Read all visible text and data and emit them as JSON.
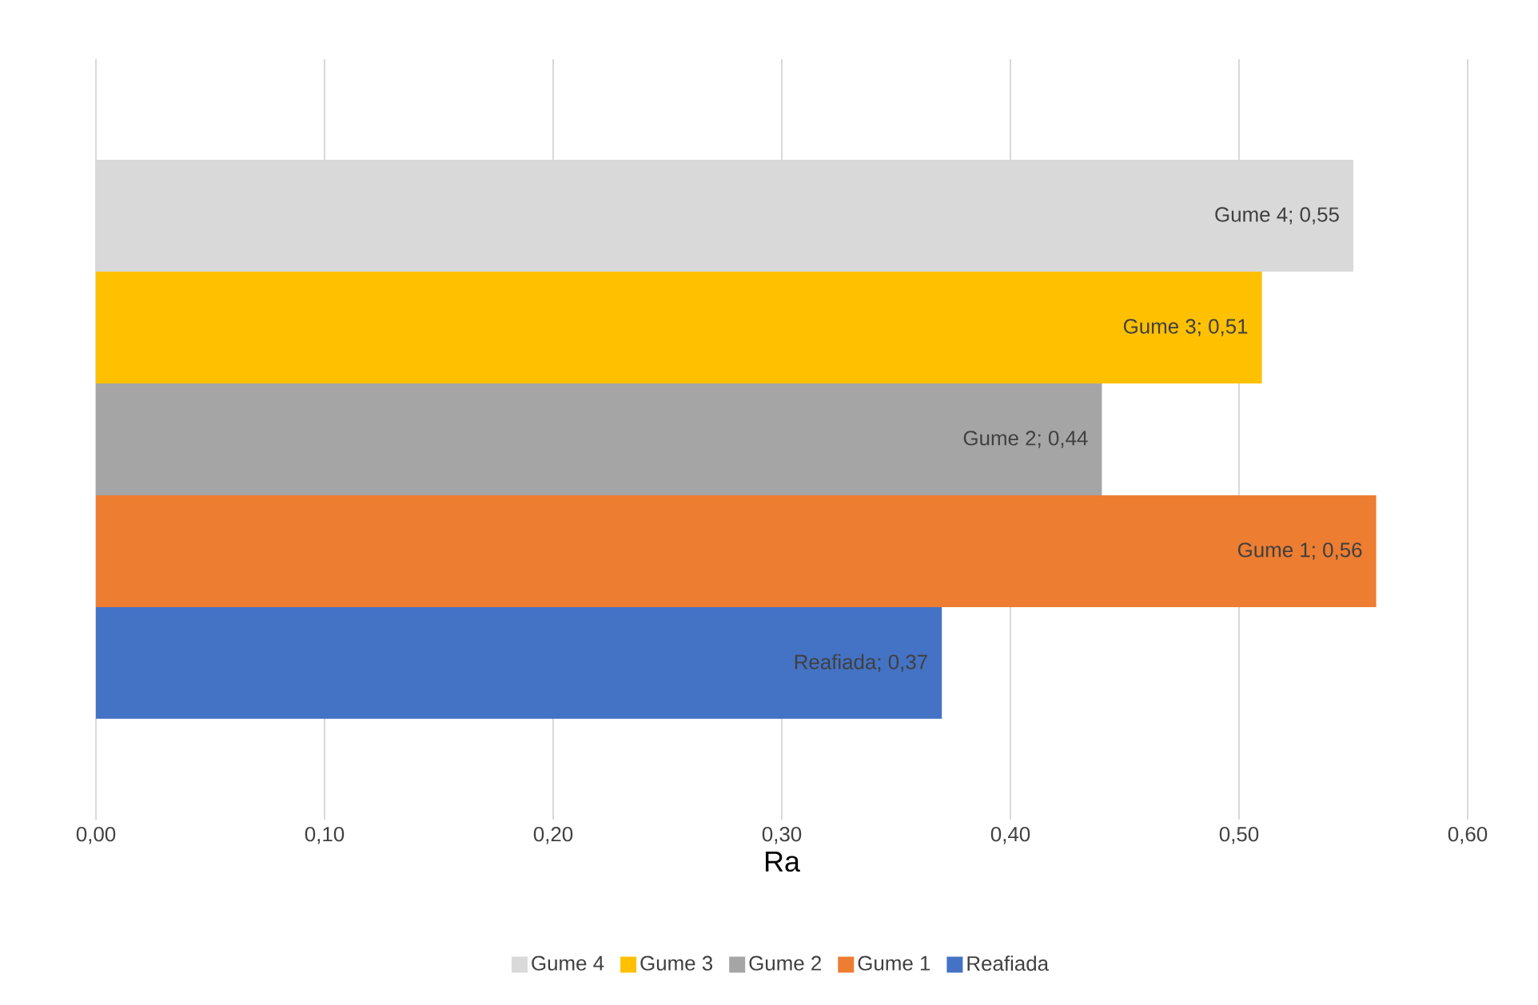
{
  "chart_data": {
    "type": "bar",
    "orientation": "horizontal",
    "xlabel": "Ra",
    "categories": [
      null
    ],
    "series": [
      {
        "name": "Gume 4",
        "color": "#d9d9d9",
        "values": [
          0.55
        ],
        "value_labels": [
          "Gume 4; 0,55"
        ]
      },
      {
        "name": "Gume 3",
        "color": "#ffc000",
        "values": [
          0.51
        ],
        "value_labels": [
          "Gume 3; 0,51"
        ]
      },
      {
        "name": "Gume 2",
        "color": "#a5a5a5",
        "values": [
          0.44
        ],
        "value_labels": [
          "Gume 2; 0,44"
        ]
      },
      {
        "name": "Gume 1",
        "color": "#ed7d31",
        "values": [
          0.56
        ],
        "value_labels": [
          "Gume 1; 0,56"
        ]
      },
      {
        "name": "Reafiada",
        "color": "#4472c4",
        "values": [
          0.37
        ],
        "value_labels": [
          "Reafiada; 0,37"
        ]
      }
    ],
    "xlim": [
      0,
      0.6
    ],
    "xticks": [
      {
        "value": 0,
        "label": "0,00"
      },
      {
        "value": 0.1,
        "label": "0,10"
      },
      {
        "value": 0.2,
        "label": "0,20"
      },
      {
        "value": 0.3,
        "label": "0,30"
      },
      {
        "value": 0.4,
        "label": "0,40"
      },
      {
        "value": 0.5,
        "label": "0,50"
      },
      {
        "value": 0.6,
        "label": "0,60"
      }
    ],
    "grid": "x",
    "legend": "bottom"
  }
}
